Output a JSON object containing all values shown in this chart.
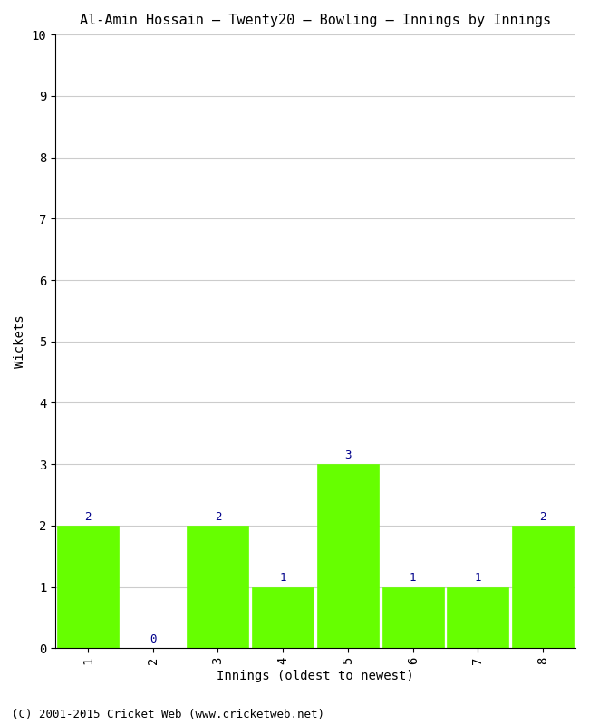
{
  "title": "Al-Amin Hossain – Twenty20 – Bowling – Innings by Innings",
  "xlabel": "Innings (oldest to newest)",
  "ylabel": "Wickets",
  "categories": [
    "1",
    "2",
    "3",
    "4",
    "5",
    "6",
    "7",
    "8"
  ],
  "values": [
    2,
    0,
    2,
    1,
    3,
    1,
    1,
    2
  ],
  "bar_color": "#66ff00",
  "bar_edge_color": "#66ff00",
  "ylim": [
    0,
    10
  ],
  "yticks": [
    0,
    1,
    2,
    3,
    4,
    5,
    6,
    7,
    8,
    9,
    10
  ],
  "background_color": "#ffffff",
  "grid_color": "#cccccc",
  "title_fontsize": 11,
  "axis_label_fontsize": 10,
  "tick_fontsize": 10,
  "annotation_color": "#00008b",
  "annotation_fontsize": 9,
  "footer_text": "(C) 2001-2015 Cricket Web (www.cricketweb.net)",
  "footer_fontsize": 9,
  "font_family": "monospace",
  "bar_width": 0.95
}
